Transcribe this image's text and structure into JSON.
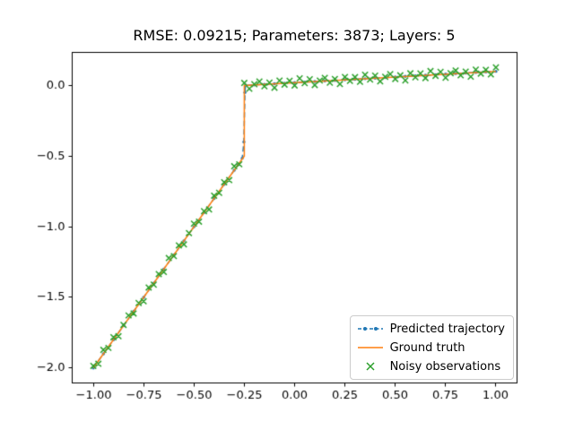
{
  "chart_data": {
    "type": "line",
    "title": "RMSE: 0.09215; Parameters: 3873; Layers: 5",
    "xlabel": "",
    "ylabel": "",
    "xlim": [
      -1.105,
      1.105
    ],
    "ylim": [
      -2.106,
      0.234
    ],
    "grid": false,
    "legend_position": "lower right",
    "x_ticks": [
      {
        "value": -1.0,
        "label": "−1.00"
      },
      {
        "value": -0.75,
        "label": "−0.75"
      },
      {
        "value": -0.5,
        "label": "−0.50"
      },
      {
        "value": -0.25,
        "label": "−0.25"
      },
      {
        "value": 0.0,
        "label": "0.00"
      },
      {
        "value": 0.25,
        "label": "0.25"
      },
      {
        "value": 0.5,
        "label": "0.50"
      },
      {
        "value": 0.75,
        "label": "0.75"
      },
      {
        "value": 1.0,
        "label": "1.00"
      }
    ],
    "y_ticks": [
      {
        "value": 0.0,
        "label": "0.0"
      },
      {
        "value": -0.5,
        "label": "−0.5"
      },
      {
        "value": -1.0,
        "label": "−1.0"
      },
      {
        "value": -1.5,
        "label": "−1.5"
      },
      {
        "value": -2.0,
        "label": "−2.0"
      }
    ],
    "series": [
      {
        "name": "Predicted trajectory",
        "type": "line",
        "style": "dashed",
        "marker": "dot",
        "color": "#1f77b4",
        "x": [
          -1.0,
          -0.95,
          -0.9,
          -0.85,
          -0.8,
          -0.75,
          -0.7,
          -0.65,
          -0.6,
          -0.55,
          -0.5,
          -0.45,
          -0.4,
          -0.35,
          -0.3,
          -0.28,
          -0.26,
          -0.252,
          -0.247,
          -0.244,
          -0.2,
          -0.15,
          -0.1,
          -0.05,
          0.0,
          0.05,
          0.1,
          0.15,
          0.2,
          0.25,
          0.3,
          0.35,
          0.4,
          0.45,
          0.5,
          0.55,
          0.6,
          0.65,
          0.7,
          0.75,
          0.8,
          0.85,
          0.9,
          0.95,
          1.0
        ],
        "y": [
          -2.0,
          -1.9,
          -1.8,
          -1.7,
          -1.6,
          -1.5,
          -1.4,
          -1.3,
          -1.2,
          -1.1,
          -1.0,
          -0.9,
          -0.8,
          -0.7,
          -0.6,
          -0.56,
          -0.515,
          -0.4,
          -0.05,
          0.001,
          0.004,
          0.008,
          0.012,
          0.016,
          0.02,
          0.024,
          0.028,
          0.032,
          0.036,
          0.04,
          0.044,
          0.048,
          0.052,
          0.056,
          0.06,
          0.064,
          0.068,
          0.072,
          0.076,
          0.08,
          0.084,
          0.088,
          0.092,
          0.096,
          0.1
        ]
      },
      {
        "name": "Ground truth",
        "type": "line",
        "style": "solid",
        "marker": null,
        "color": "#ff7f0e",
        "x": [
          -1.0,
          -0.25,
          -0.25,
          1.0
        ],
        "y": [
          -2.0,
          -0.5,
          0.0,
          0.1
        ]
      },
      {
        "name": "Noisy observations",
        "type": "scatter",
        "style": "none",
        "marker": "x",
        "color": "#2ca02c",
        "x": [
          -1.0,
          -0.975,
          -0.95,
          -0.925,
          -0.9,
          -0.875,
          -0.85,
          -0.825,
          -0.8,
          -0.775,
          -0.75,
          -0.725,
          -0.7,
          -0.675,
          -0.65,
          -0.625,
          -0.6,
          -0.575,
          -0.55,
          -0.525,
          -0.5,
          -0.475,
          -0.45,
          -0.425,
          -0.4,
          -0.375,
          -0.35,
          -0.325,
          -0.3,
          -0.275,
          -0.25,
          -0.225,
          -0.2,
          -0.175,
          -0.15,
          -0.125,
          -0.1,
          -0.075,
          -0.05,
          -0.025,
          0.0,
          0.025,
          0.05,
          0.075,
          0.1,
          0.125,
          0.15,
          0.175,
          0.2,
          0.225,
          0.25,
          0.275,
          0.3,
          0.325,
          0.35,
          0.375,
          0.4,
          0.425,
          0.45,
          0.475,
          0.5,
          0.525,
          0.55,
          0.575,
          0.6,
          0.625,
          0.65,
          0.675,
          0.7,
          0.725,
          0.75,
          0.775,
          0.8,
          0.825,
          0.85,
          0.875,
          0.9,
          0.925,
          0.95,
          0.975,
          1.0
        ],
        "y": [
          -1.985,
          -1.97,
          -1.872,
          -1.858,
          -1.782,
          -1.775,
          -1.695,
          -1.628,
          -1.614,
          -1.54,
          -1.528,
          -1.43,
          -1.41,
          -1.335,
          -1.32,
          -1.222,
          -1.208,
          -1.132,
          -1.125,
          -1.045,
          -0.978,
          -0.964,
          -0.89,
          -0.878,
          -0.78,
          -0.76,
          -0.685,
          -0.67,
          -0.572,
          -0.558,
          0.018,
          -0.023,
          0.009,
          0.028,
          -0.006,
          0.02,
          -0.016,
          0.034,
          0.006,
          0.033,
          0.0,
          0.05,
          0.016,
          0.044,
          0.003,
          0.035,
          0.054,
          0.02,
          0.046,
          0.01,
          0.06,
          0.032,
          0.059,
          0.026,
          0.076,
          0.042,
          0.07,
          0.029,
          0.061,
          0.08,
          0.046,
          0.072,
          0.036,
          0.086,
          0.058,
          0.085,
          0.052,
          0.102,
          0.068,
          0.096,
          0.055,
          0.087,
          0.106,
          0.072,
          0.098,
          0.062,
          0.112,
          0.084,
          0.111,
          0.078,
          0.128
        ]
      }
    ]
  }
}
